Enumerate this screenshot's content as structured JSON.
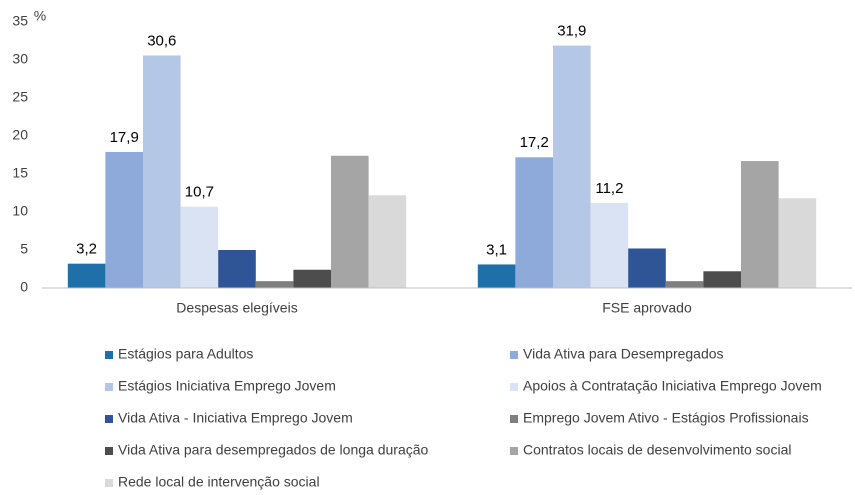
{
  "chart_data": {
    "type": "bar",
    "ylabel": "%",
    "categories": [
      "Despesas elegíveis",
      "FSE aprovado"
    ],
    "ylim": [
      0,
      35
    ],
    "yticks": [
      0,
      5,
      10,
      15,
      20,
      25,
      30,
      35
    ],
    "grid": false,
    "legend": "bottom",
    "series": [
      {
        "name": "Estágios para Adultos",
        "color": "#1f6fa8",
        "values": [
          3.2,
          3.1
        ],
        "value_labels": [
          "3,2",
          "3,1"
        ]
      },
      {
        "name": "Vida Ativa para Desempregados",
        "color": "#8eaadb",
        "values": [
          17.9,
          17.2
        ],
        "value_labels": [
          "17,9",
          "17,2"
        ]
      },
      {
        "name": "Estágios Iniciativa Emprego Jovem",
        "color": "#b4c7e7",
        "values": [
          30.6,
          31.9
        ],
        "value_labels": [
          "30,6",
          "31,9"
        ]
      },
      {
        "name": "Apoios à Contratação Iniciativa Emprego Jovem",
        "color": "#dae3f3",
        "values": [
          10.7,
          11.2
        ],
        "value_labels": [
          "10,7",
          "11,2"
        ]
      },
      {
        "name": "Vida Ativa - Iniciativa Emprego Jovem",
        "color": "#2f5597",
        "values": [
          5.0,
          5.2
        ]
      },
      {
        "name": "Emprego Jovem Ativo - Estágios Profissionais",
        "color": "#7f7f7f",
        "values": [
          0.9,
          0.9
        ]
      },
      {
        "name": "Vida Ativa para desempregados de longa duração",
        "color": "#4d4d4d",
        "values": [
          2.4,
          2.2
        ]
      },
      {
        "name": "Contratos locais de desenvolvimento social",
        "color": "#a5a5a5",
        "values": [
          17.4,
          16.7
        ]
      },
      {
        "name": "Rede local de intervenção social",
        "color": "#d9d9d9",
        "values": [
          12.2,
          11.8
        ]
      }
    ]
  }
}
